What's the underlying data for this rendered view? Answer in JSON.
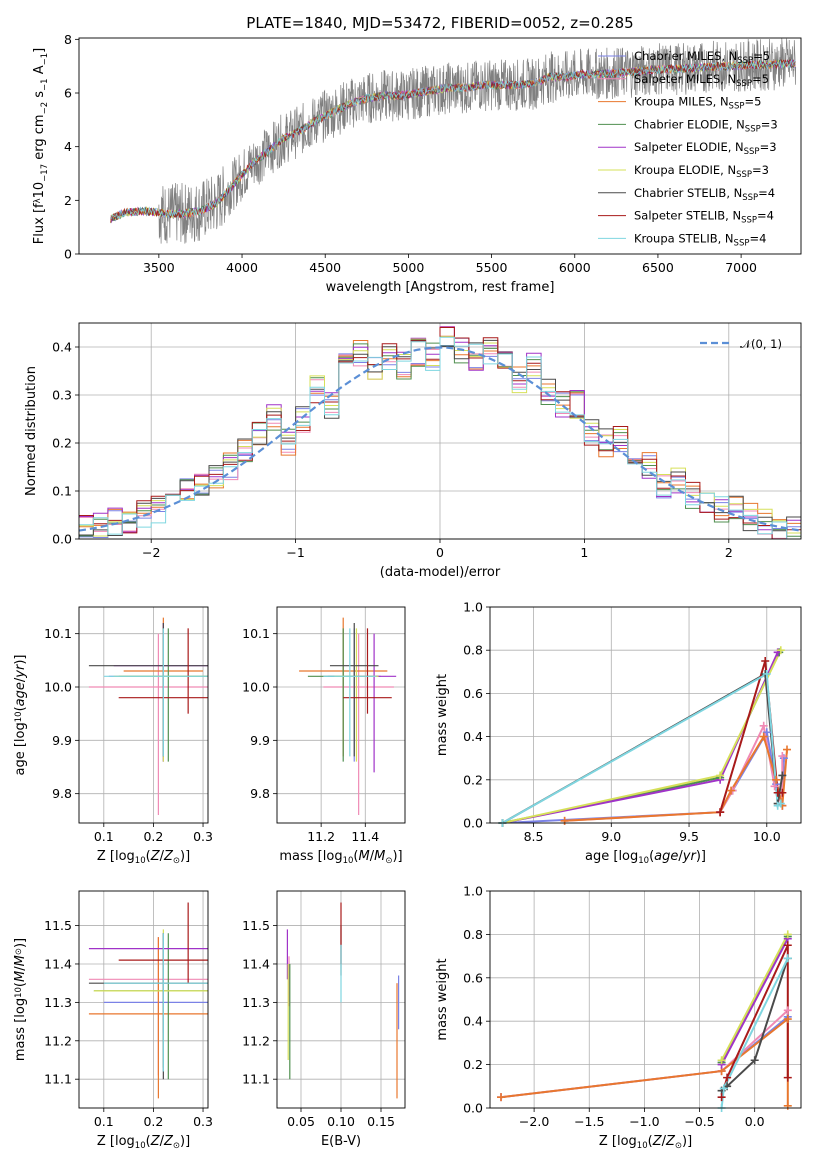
{
  "title": "PLATE=1840, MJD=53472, FIBERID=0052, z=0.285",
  "colors": {
    "Chabrier MILES": "#7b82e6",
    "Salpeter MILES": "#f08ab5",
    "Kroupa MILES": "#e8772e",
    "Chabrier ELODIE": "#4f8f4f",
    "Salpeter ELODIE": "#a033c8",
    "Kroupa ELODIE": "#d6e05a",
    "Chabrier STELIB": "#4a4a4a",
    "Salpeter STELIB": "#a81a1a",
    "Kroupa STELIB": "#7fd6e0",
    "data": "#808080",
    "gaussian": "#5b8fd6"
  },
  "chart_data": [
    {
      "id": "spectrum",
      "type": "line",
      "xlabel": "wavelength [Angstrom, rest frame]",
      "ylabel_parts": {
        "pre": "Flux [f",
        "sub1": "λ",
        "mid": "10",
        "sup1": "−17",
        "mid2": " erg cm",
        "sup2": "−2",
        "mid3": " s",
        "sup3": "−1",
        "mid4": " A",
        "sup4": "−1",
        "post": "]"
      },
      "xlim": [
        3020,
        7360
      ],
      "ylim": [
        0,
        8.05
      ],
      "xticks": [
        3500,
        4000,
        4500,
        5000,
        5500,
        6000,
        6500,
        7000
      ],
      "yticks": [
        0,
        2,
        4,
        6,
        8
      ],
      "data_trend": {
        "x": [
          3210,
          3300,
          3400,
          3500,
          3550,
          3650,
          3750,
          3850,
          3950,
          4050,
          4150,
          4250,
          4350,
          4450,
          4550,
          4650,
          4750,
          4850,
          4950,
          5050,
          5150,
          5250,
          5350,
          5450,
          5550,
          5650,
          5750,
          5850,
          5950,
          6050,
          6150,
          6250,
          6350,
          6450,
          6550,
          6650,
          6750,
          6850,
          6950,
          7050,
          7150,
          7250,
          7330
        ],
        "y": [
          1.3,
          1.55,
          1.6,
          1.55,
          1.5,
          1.5,
          1.6,
          1.9,
          2.6,
          3.3,
          3.8,
          4.3,
          4.6,
          5.0,
          5.3,
          5.6,
          5.8,
          5.9,
          5.9,
          6.0,
          6.1,
          6.2,
          6.2,
          6.3,
          6.3,
          6.3,
          6.35,
          6.6,
          6.6,
          6.7,
          6.7,
          6.75,
          6.8,
          6.85,
          6.9,
          6.9,
          6.95,
          7.0,
          7.0,
          7.05,
          7.05,
          7.1,
          7.1
        ]
      },
      "legend": [
        {
          "imf": "Chabrier",
          "lib": "MILES",
          "nssp": "5"
        },
        {
          "imf": "Salpeter",
          "lib": "MILES",
          "nssp": "5"
        },
        {
          "imf": "Kroupa",
          "lib": "MILES",
          "nssp": "5"
        },
        {
          "imf": "Chabrier",
          "lib": "ELODIE",
          "nssp": "3"
        },
        {
          "imf": "Salpeter",
          "lib": "ELODIE",
          "nssp": "3"
        },
        {
          "imf": "Kroupa",
          "lib": "ELODIE",
          "nssp": "3"
        },
        {
          "imf": "Chabrier",
          "lib": "STELIB",
          "nssp": "4"
        },
        {
          "imf": "Salpeter",
          "lib": "STELIB",
          "nssp": "4"
        },
        {
          "imf": "Kroupa",
          "lib": "STELIB",
          "nssp": "4"
        }
      ]
    },
    {
      "id": "residuals",
      "type": "histogram",
      "xlabel": "(data-model)/error",
      "ylabel": "Normed distribution",
      "xlim": [
        -2.5,
        2.5
      ],
      "ylim": [
        0,
        0.45
      ],
      "xticks": [
        -2,
        -1,
        0,
        1,
        2
      ],
      "yticks": [
        0.0,
        0.1,
        0.2,
        0.3,
        0.4
      ],
      "legend": "𝒩(0, 1)",
      "bin_width": 0.1,
      "bin_centers": [
        -2.45,
        -2.35,
        -2.25,
        -2.15,
        -2.05,
        -1.95,
        -1.85,
        -1.75,
        -1.65,
        -1.55,
        -1.45,
        -1.35,
        -1.25,
        -1.15,
        -1.05,
        -0.95,
        -0.85,
        -0.75,
        -0.65,
        -0.55,
        -0.45,
        -0.35,
        -0.25,
        -0.15,
        -0.05,
        0.05,
        0.15,
        0.25,
        0.35,
        0.45,
        0.55,
        0.65,
        0.75,
        0.85,
        0.95,
        1.05,
        1.15,
        1.25,
        1.35,
        1.45,
        1.55,
        1.65,
        1.75,
        1.85,
        1.95,
        2.05,
        2.15,
        2.25,
        2.35,
        2.45
      ],
      "heights": [
        0.02,
        0.025,
        0.035,
        0.04,
        0.05,
        0.06,
        0.075,
        0.1,
        0.12,
        0.13,
        0.15,
        0.19,
        0.22,
        0.25,
        0.2,
        0.25,
        0.31,
        0.28,
        0.36,
        0.39,
        0.36,
        0.38,
        0.36,
        0.39,
        0.38,
        0.42,
        0.39,
        0.38,
        0.39,
        0.37,
        0.33,
        0.36,
        0.31,
        0.28,
        0.28,
        0.22,
        0.2,
        0.21,
        0.16,
        0.15,
        0.11,
        0.12,
        0.09,
        0.08,
        0.06,
        0.06,
        0.045,
        0.035,
        0.025,
        0.02
      ]
    },
    {
      "id": "age-vs-Z",
      "type": "errorbar",
      "xlabel": "Z [log₁₀(Z/Z⊙)]",
      "ylabel": "age  [log₁₀(age/yr)]",
      "xlim": [
        0.05,
        0.31
      ],
      "ylim": [
        9.745,
        10.15
      ],
      "xticks": [
        0.1,
        0.2,
        0.3
      ],
      "yticks": [
        9.8,
        9.9,
        10.0,
        10.1
      ],
      "points": [
        {
          "model": "Chabrier MILES",
          "x": 0.22,
          "y": 10.02,
          "xerr": 0.11,
          "yerr": [
            0.16,
            0.09
          ]
        },
        {
          "model": "Salpeter MILES",
          "x": 0.21,
          "y": 10.0,
          "xerr": 0.14,
          "yerr": [
            0.24,
            0.1
          ]
        },
        {
          "model": "Kroupa MILES",
          "x": 0.22,
          "y": 10.03,
          "xerr": 0.08,
          "yerr": [
            0.16,
            0.1
          ]
        },
        {
          "model": "Chabrier ELODIE",
          "x": 0.23,
          "y": 10.02,
          "xerr": 0.1,
          "yerr": [
            0.16,
            0.09
          ]
        },
        {
          "model": "Salpeter ELODIE",
          "x": 0.22,
          "y": 10.04,
          "xerr": 0.1,
          "yerr": [
            0.18,
            0.08
          ]
        },
        {
          "model": "Kroupa ELODIE",
          "x": 0.22,
          "y": 10.02,
          "xerr": 0.1,
          "yerr": [
            0.16,
            0.09
          ]
        },
        {
          "model": "Chabrier STELIB",
          "x": 0.22,
          "y": 10.04,
          "xerr": 0.15,
          "yerr": [
            0.17,
            0.08
          ]
        },
        {
          "model": "Salpeter STELIB",
          "x": 0.27,
          "y": 9.98,
          "xerr": 0.14,
          "yerr": [
            0.03,
            0.13
          ]
        },
        {
          "model": "Kroupa STELIB",
          "x": 0.22,
          "y": 10.02,
          "xerr": 0.12,
          "yerr": [
            0.15,
            0.09
          ]
        }
      ]
    },
    {
      "id": "age-vs-mass",
      "type": "errorbar",
      "xlabel": "mass [log₁₀(M/M⊙)]",
      "xlim": [
        11.0,
        11.58
      ],
      "ylim": [
        9.745,
        10.15
      ],
      "xticks": [
        11.2,
        11.4
      ],
      "yticks": [
        9.8,
        9.9,
        10.0,
        10.1
      ],
      "points": [
        {
          "model": "Chabrier MILES",
          "x": 11.35,
          "y": 10.02,
          "xerr": 0.12,
          "yerr": [
            0.16,
            0.09
          ]
        },
        {
          "model": "Salpeter MILES",
          "x": 11.37,
          "y": 10.0,
          "xerr": 0.16,
          "yerr": [
            0.24,
            0.1
          ]
        },
        {
          "model": "Kroupa MILES",
          "x": 11.3,
          "y": 10.03,
          "xerr": 0.2,
          "yerr": [
            0.16,
            0.1
          ]
        },
        {
          "model": "Chabrier ELODIE",
          "x": 11.3,
          "y": 10.02,
          "xerr": 0.16,
          "yerr": [
            0.16,
            0.09
          ]
        },
        {
          "model": "Salpeter ELODIE",
          "x": 11.44,
          "y": 10.02,
          "xerr": 0.1,
          "yerr": [
            0.18,
            0.08
          ]
        },
        {
          "model": "Kroupa ELODIE",
          "x": 11.36,
          "y": 10.02,
          "xerr": 0.1,
          "yerr": [
            0.16,
            0.09
          ]
        },
        {
          "model": "Chabrier STELIB",
          "x": 11.35,
          "y": 10.04,
          "xerr": 0.11,
          "yerr": [
            0.17,
            0.08
          ]
        },
        {
          "model": "Salpeter STELIB",
          "x": 11.41,
          "y": 9.98,
          "xerr": 0.11,
          "yerr": [
            0.03,
            0.13
          ]
        },
        {
          "model": "Kroupa STELIB",
          "x": 11.33,
          "y": 10.02,
          "xerr": 0.12,
          "yerr": [
            0.15,
            0.09
          ]
        }
      ]
    },
    {
      "id": "weight-vs-age",
      "type": "line",
      "xlabel": "age  [log₁₀(age/yr)]",
      "ylabel": "mass weight",
      "xlim": [
        8.22,
        10.22
      ],
      "ylim": [
        0,
        1.0
      ],
      "xticks": [
        8.5,
        9.0,
        9.5,
        10.0
      ],
      "yticks": [
        0.0,
        0.2,
        0.4,
        0.6,
        0.8,
        1.0
      ],
      "series": [
        {
          "model": "Chabrier MILES",
          "x": [
            8.3,
            9.7,
            9.78,
            10.0,
            10.06,
            10.1,
            10.11
          ],
          "y": [
            0.0,
            0.05,
            0.15,
            0.42,
            0.18,
            0.08,
            0.3
          ]
        },
        {
          "model": "Salpeter MILES",
          "x": [
            8.7,
            9.7,
            9.78,
            9.98,
            10.05,
            10.1,
            10.1
          ],
          "y": [
            0.01,
            0.05,
            0.15,
            0.45,
            0.17,
            0.08,
            0.31
          ]
        },
        {
          "model": "Kroupa MILES",
          "x": [
            8.7,
            9.7,
            9.77,
            9.98,
            10.06,
            10.1,
            10.13
          ],
          "y": [
            0.01,
            0.05,
            0.15,
            0.4,
            0.2,
            0.08,
            0.34
          ]
        },
        {
          "model": "Chabrier ELODIE",
          "x": [
            8.3,
            9.7,
            10.08
          ],
          "y": [
            0.0,
            0.21,
            0.79
          ]
        },
        {
          "model": "Salpeter ELODIE",
          "x": [
            8.3,
            9.7,
            10.07
          ],
          "y": [
            0.0,
            0.2,
            0.79
          ]
        },
        {
          "model": "Kroupa ELODIE",
          "x": [
            8.3,
            9.7,
            10.09
          ],
          "y": [
            0.0,
            0.22,
            0.8
          ]
        },
        {
          "model": "Chabrier STELIB",
          "x": [
            8.3,
            9.99,
            10.07,
            10.1
          ],
          "y": [
            0.0,
            0.69,
            0.09,
            0.22
          ]
        },
        {
          "model": "Salpeter STELIB",
          "x": [
            9.7,
            9.99,
            10.07,
            10.1
          ],
          "y": [
            0.05,
            0.75,
            0.14,
            0.14
          ]
        },
        {
          "model": "Kroupa STELIB",
          "x": [
            8.3,
            10.0,
            10.07,
            10.09
          ],
          "y": [
            0.0,
            0.69,
            0.08,
            0.09
          ]
        }
      ]
    },
    {
      "id": "mass-vs-Z",
      "type": "errorbar",
      "xlabel": "Z [log₁₀(Z/Z⊙)]",
      "ylabel": "mass [log₁₀(M/M⊙)]",
      "xlim": [
        0.05,
        0.31
      ],
      "ylim": [
        11.025,
        11.59
      ],
      "xticks": [
        0.1,
        0.2,
        0.3
      ],
      "yticks": [
        11.1,
        11.2,
        11.3,
        11.4,
        11.5
      ],
      "points": [
        {
          "model": "Chabrier MILES",
          "x": 0.22,
          "y": 11.3,
          "xerr": 0.12,
          "yerr": [
            0.17,
            0.18
          ]
        },
        {
          "model": "Salpeter MILES",
          "x": 0.21,
          "y": 11.36,
          "xerr": 0.14,
          "yerr": [
            0.25,
            0.11
          ]
        },
        {
          "model": "Kroupa MILES",
          "x": 0.21,
          "y": 11.27,
          "xerr": 0.14,
          "yerr": [
            0.22,
            0.2
          ]
        },
        {
          "model": "Chabrier ELODIE",
          "x": 0.23,
          "y": 11.33,
          "xerr": 0.15,
          "yerr": [
            0.23,
            0.15
          ]
        },
        {
          "model": "Salpeter ELODIE",
          "x": 0.22,
          "y": 11.44,
          "xerr": 0.15,
          "yerr": [
            0.22,
            0.04
          ]
        },
        {
          "model": "Kroupa ELODIE",
          "x": 0.22,
          "y": 11.33,
          "xerr": 0.14,
          "yerr": [
            0.2,
            0.16
          ]
        },
        {
          "model": "Chabrier STELIB",
          "x": 0.22,
          "y": 11.35,
          "xerr": 0.15,
          "yerr": [
            0.25,
            0.13
          ]
        },
        {
          "model": "Salpeter STELIB",
          "x": 0.27,
          "y": 11.41,
          "xerr": 0.14,
          "yerr": [
            0.06,
            0.15
          ]
        },
        {
          "model": "Kroupa STELIB",
          "x": 0.22,
          "y": 11.35,
          "xerr": 0.12,
          "yerr": [
            0.23,
            0.13
          ]
        }
      ]
    },
    {
      "id": "mass-vs-EBV",
      "type": "errorbar",
      "xlabel": "E(B-V)",
      "xlim": [
        0.02,
        0.18
      ],
      "ylim": [
        11.025,
        11.59
      ],
      "xticks": [
        0.05,
        0.1,
        0.15
      ],
      "yticks": [
        11.1,
        11.2,
        11.3,
        11.4,
        11.5
      ],
      "points": [
        {
          "model": "Chabrier MILES",
          "x": 0.172,
          "y": 11.3,
          "xerr": 0,
          "yerr": [
            0.07,
            0.07
          ]
        },
        {
          "model": "Salpeter MILES",
          "x": 0.035,
          "y": 11.36,
          "xerr": 0,
          "yerr": [
            0.07,
            0.06
          ]
        },
        {
          "model": "Kroupa MILES",
          "x": 0.17,
          "y": 11.2,
          "xerr": 0,
          "yerr": [
            0.15,
            0.15
          ]
        },
        {
          "model": "Chabrier ELODIE",
          "x": 0.036,
          "y": 11.25,
          "xerr": 0,
          "yerr": [
            0.15,
            0.15
          ]
        },
        {
          "model": "Salpeter ELODIE",
          "x": 0.033,
          "y": 11.44,
          "xerr": 0,
          "yerr": [
            0.08,
            0.05
          ]
        },
        {
          "model": "Kroupa ELODIE",
          "x": 0.034,
          "y": 11.3,
          "xerr": 0,
          "yerr": [
            0.15,
            0.1
          ]
        },
        {
          "model": "Chabrier STELIB",
          "x": 0.1,
          "y": 11.45,
          "xerr": 0,
          "yerr": [
            0.08,
            0.05
          ]
        },
        {
          "model": "Salpeter STELIB",
          "x": 0.1,
          "y": 11.46,
          "xerr": 0,
          "yerr": [
            0.06,
            0.1
          ]
        },
        {
          "model": "Kroupa STELIB",
          "x": 0.1,
          "y": 11.38,
          "xerr": 0,
          "yerr": [
            0.08,
            0.07
          ]
        }
      ]
    },
    {
      "id": "weight-vs-Z",
      "type": "line",
      "xlabel": "Z [log₁₀(Z/Z⊙)]",
      "ylabel": "mass weight",
      "xlim": [
        -2.4,
        0.42
      ],
      "ylim": [
        0,
        1.0
      ],
      "xticks": [
        -2.0,
        -1.5,
        -1.0,
        -0.5,
        0.0
      ],
      "yticks": [
        0.0,
        0.2,
        0.4,
        0.6,
        0.8,
        1.0
      ],
      "series": [
        {
          "model": "Chabrier MILES",
          "x": [
            -2.3,
            -0.3,
            0.3
          ],
          "y": [
            0.05,
            0.17,
            0.42
          ]
        },
        {
          "model": "Salpeter MILES",
          "x": [
            -2.3,
            -0.3,
            0.3
          ],
          "y": [
            0.05,
            0.17,
            0.45
          ]
        },
        {
          "model": "Kroupa MILES",
          "x": [
            -2.3,
            -0.3,
            0.3,
            0.3
          ],
          "y": [
            0.05,
            0.17,
            0.41,
            0.01
          ]
        },
        {
          "model": "Chabrier ELODIE",
          "x": [
            -0.3,
            0.3
          ],
          "y": [
            0.21,
            0.79
          ]
        },
        {
          "model": "Salpeter ELODIE",
          "x": [
            -0.3,
            0.3
          ],
          "y": [
            0.2,
            0.78
          ]
        },
        {
          "model": "Kroupa ELODIE",
          "x": [
            -0.3,
            0.3
          ],
          "y": [
            0.22,
            0.8
          ]
        },
        {
          "model": "Chabrier STELIB",
          "x": [
            -0.3,
            -0.25,
            0.0,
            0.3
          ],
          "y": [
            0.08,
            0.1,
            0.22,
            0.69
          ]
        },
        {
          "model": "Salpeter STELIB",
          "x": [
            -0.3,
            -0.25,
            0.3,
            0.3
          ],
          "y": [
            0.05,
            0.14,
            0.75,
            0.14
          ]
        },
        {
          "model": "Kroupa STELIB",
          "x": [
            -0.3,
            -0.28,
            0.3
          ],
          "y": [
            0.0,
            0.09,
            0.69
          ]
        }
      ]
    }
  ]
}
